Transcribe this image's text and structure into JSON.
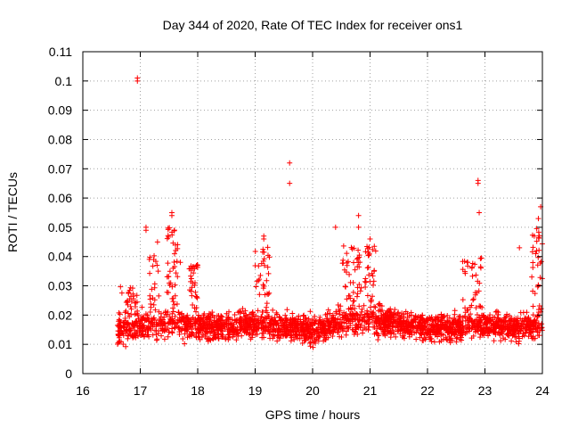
{
  "chart_data": {
    "type": "scatter",
    "title": "Day 344 of 2020, Rate Of TEC Index for receiver ons1",
    "xlabel": "GPS time / hours",
    "ylabel": "ROTI / TECUs",
    "xlim": [
      16,
      24
    ],
    "ylim": [
      0,
      0.11
    ],
    "xticks": [
      "16",
      "17",
      "18",
      "19",
      "20",
      "21",
      "22",
      "23",
      "24"
    ],
    "yticks": [
      "0",
      "0.01",
      "0.02",
      "0.03",
      "0.04",
      "0.05",
      "0.06",
      "0.07",
      "0.08",
      "0.09",
      "0.1",
      "0.11"
    ],
    "grid": true,
    "marker": "+",
    "color": "#ff0000",
    "series": [
      {
        "name": "ROTI",
        "x_range": [
          16.6,
          24.0
        ],
        "baseline": [
          [
            16.6,
            0.015
          ],
          [
            17.0,
            0.016
          ],
          [
            17.5,
            0.017
          ],
          [
            18.0,
            0.016
          ],
          [
            18.5,
            0.016
          ],
          [
            19.0,
            0.017
          ],
          [
            19.5,
            0.016
          ],
          [
            20.0,
            0.015
          ],
          [
            20.5,
            0.018
          ],
          [
            21.0,
            0.019
          ],
          [
            21.5,
            0.017
          ],
          [
            22.0,
            0.016
          ],
          [
            22.5,
            0.015
          ],
          [
            23.0,
            0.017
          ],
          [
            23.5,
            0.016
          ],
          [
            24.0,
            0.016
          ]
        ],
        "notable_points": [
          {
            "x": 16.95,
            "y": 0.101
          },
          {
            "x": 16.95,
            "y": 0.1
          },
          {
            "x": 19.6,
            "y": 0.072
          },
          {
            "x": 19.6,
            "y": 0.065
          },
          {
            "x": 22.88,
            "y": 0.066
          },
          {
            "x": 22.88,
            "y": 0.065
          },
          {
            "x": 22.9,
            "y": 0.055
          },
          {
            "x": 23.97,
            "y": 0.057
          },
          {
            "x": 23.93,
            "y": 0.053
          },
          {
            "x": 20.8,
            "y": 0.054
          },
          {
            "x": 17.55,
            "y": 0.055
          },
          {
            "x": 17.55,
            "y": 0.054
          },
          {
            "x": 17.1,
            "y": 0.05
          },
          {
            "x": 17.1,
            "y": 0.049
          },
          {
            "x": 20.4,
            "y": 0.05
          },
          {
            "x": 20.8,
            "y": 0.05
          },
          {
            "x": 21.0,
            "y": 0.046
          },
          {
            "x": 19.15,
            "y": 0.047
          },
          {
            "x": 19.15,
            "y": 0.046
          },
          {
            "x": 23.6,
            "y": 0.043
          },
          {
            "x": 17.3,
            "y": 0.045
          },
          {
            "x": 22.7,
            "y": 0.038
          },
          {
            "x": 23.9,
            "y": 0.042
          }
        ],
        "bursts": [
          {
            "x0": 16.65,
            "x1": 16.95,
            "ymax": 0.03
          },
          {
            "x0": 17.15,
            "x1": 17.35,
            "ymax": 0.041
          },
          {
            "x0": 17.45,
            "x1": 17.7,
            "ymax": 0.05
          },
          {
            "x0": 17.85,
            "x1": 18.0,
            "ymax": 0.038
          },
          {
            "x0": 19.0,
            "x1": 19.25,
            "ymax": 0.045
          },
          {
            "x0": 20.5,
            "x1": 21.1,
            "ymax": 0.044
          },
          {
            "x0": 22.6,
            "x1": 22.95,
            "ymax": 0.04
          },
          {
            "x0": 23.8,
            "x1": 24.0,
            "ymax": 0.05
          }
        ]
      }
    ]
  }
}
